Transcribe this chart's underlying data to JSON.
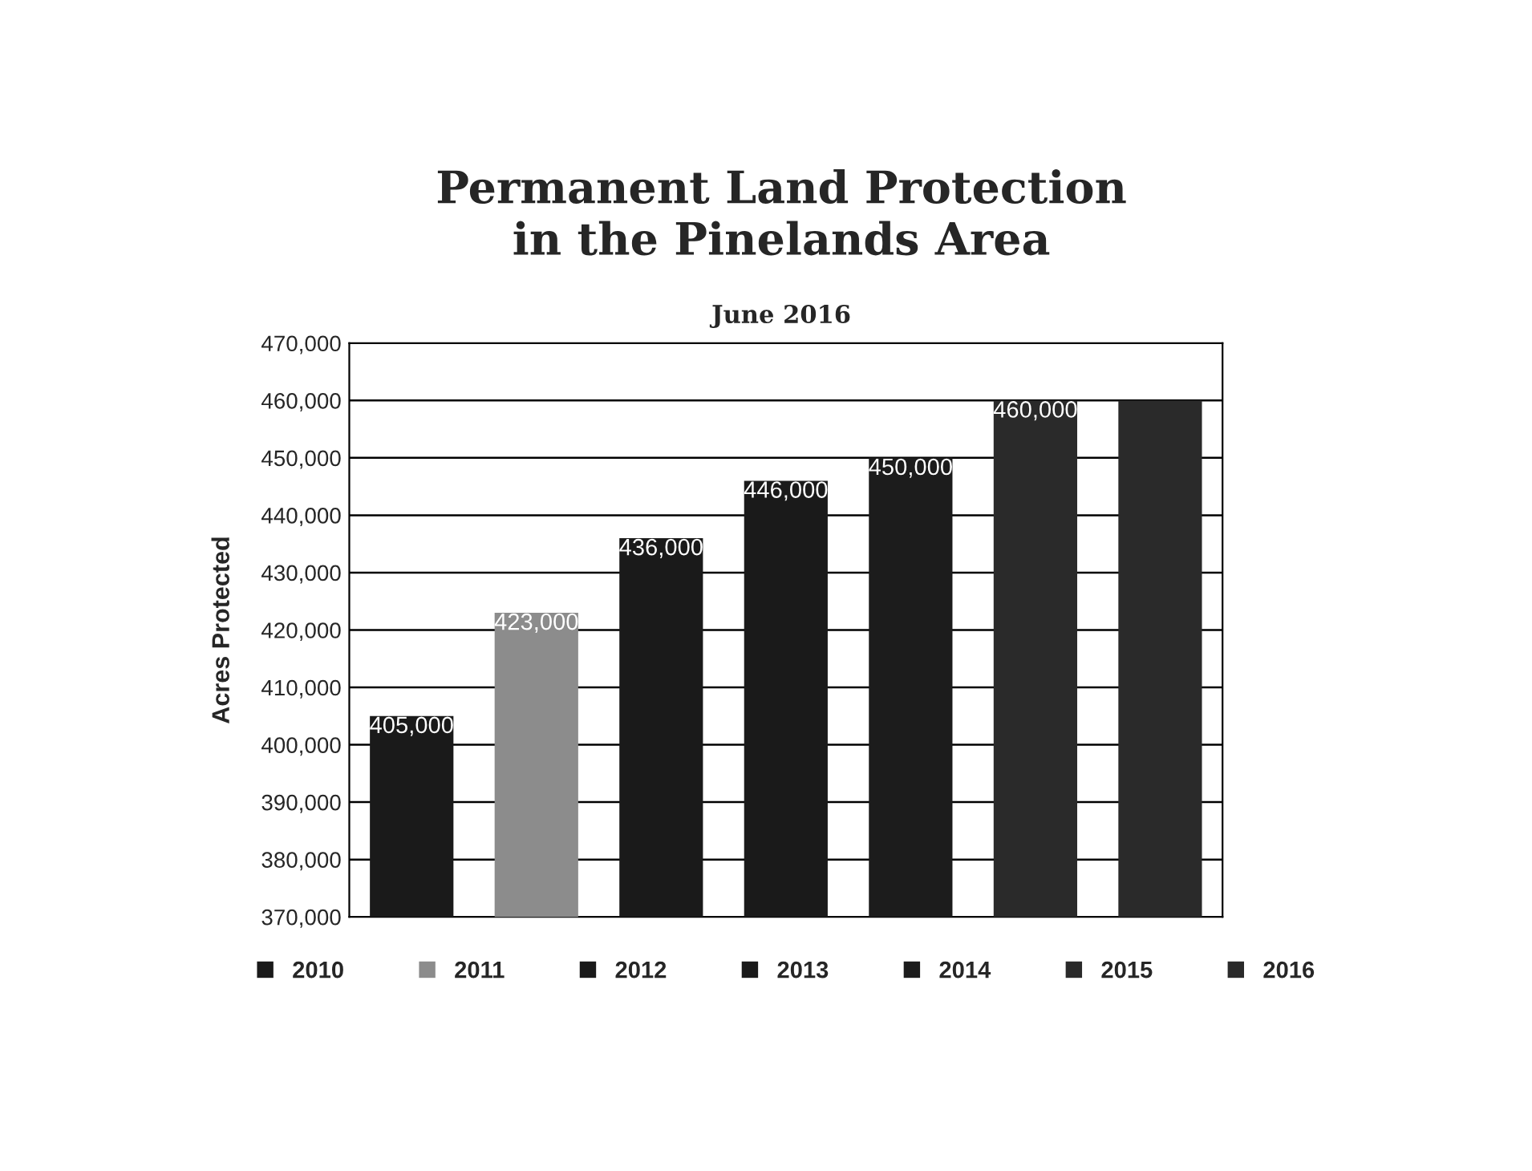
{
  "chart_data": {
    "type": "bar",
    "title": "Permanent Land Protection\nin the Pinelands Area",
    "subtitle": "June 2016",
    "ylabel": "Acres Protected",
    "categories": [
      null,
      null,
      null,
      null,
      null,
      null,
      null
    ],
    "series": [
      {
        "name": "2010",
        "color": "#1a1a1a",
        "values": [
          405000,
          null,
          null,
          null,
          null,
          null,
          null
        ],
        "value_labels": [
          "405,000",
          null,
          null,
          null,
          null,
          null,
          null
        ]
      },
      {
        "name": "2011",
        "color": "#8c8c8c",
        "values": [
          null,
          423000,
          null,
          null,
          null,
          null,
          null
        ],
        "value_labels": [
          null,
          "423,000",
          null,
          null,
          null,
          null,
          null
        ]
      },
      {
        "name": "2012",
        "color": "#1a1a1a",
        "values": [
          null,
          null,
          436000,
          null,
          null,
          null,
          null
        ],
        "value_labels": [
          null,
          null,
          "436,000",
          null,
          null,
          null,
          null
        ]
      },
      {
        "name": "2013",
        "color": "#1a1a1a",
        "values": [
          null,
          null,
          null,
          446000,
          null,
          null,
          null
        ],
        "value_labels": [
          null,
          null,
          null,
          "446,000",
          null,
          null,
          null
        ]
      },
      {
        "name": "2014",
        "color": "#1c1c1c",
        "values": [
          null,
          null,
          null,
          null,
          450000,
          null,
          null
        ],
        "value_labels": [
          null,
          null,
          null,
          null,
          "450,000",
          null,
          null
        ]
      },
      {
        "name": "2015",
        "color": "#2a2a2a",
        "values": [
          null,
          null,
          null,
          null,
          null,
          460000,
          null
        ],
        "value_labels": [
          null,
          null,
          null,
          null,
          null,
          "460,000",
          null
        ]
      },
      {
        "name": "2016",
        "color": "#2a2a2a",
        "values": [
          null,
          null,
          null,
          null,
          null,
          null,
          460000
        ]
      }
    ],
    "ylim": [
      370000,
      470000
    ],
    "yticks": [
      {
        "value": 370000,
        "label": "370,000"
      },
      {
        "value": 380000,
        "label": "380,000"
      },
      {
        "value": 390000,
        "label": "390,000"
      },
      {
        "value": 400000,
        "label": "400,000"
      },
      {
        "value": 410000,
        "label": "410,000"
      },
      {
        "value": 420000,
        "label": "420,000"
      },
      {
        "value": 430000,
        "label": "430,000"
      },
      {
        "value": 440000,
        "label": "440,000"
      },
      {
        "value": 450000,
        "label": "450,000"
      },
      {
        "value": 460000,
        "label": "460,000"
      },
      {
        "value": 470000,
        "label": "470,000"
      }
    ],
    "grid": "y",
    "legend": "bottom",
    "tick_labels": "y"
  }
}
